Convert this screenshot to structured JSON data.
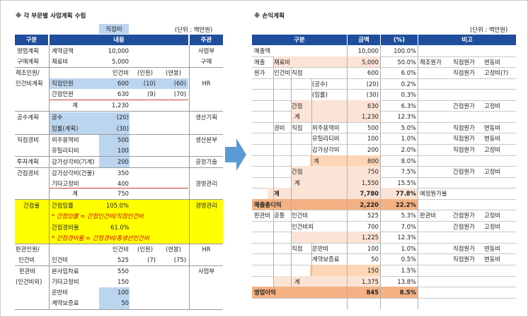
{
  "left": {
    "title": "※ 각 부문별 사업계획 수립",
    "unit": "(단위 : 백만원)",
    "top_label": "직접비",
    "headers": [
      "구분",
      "내용",
      "주관"
    ],
    "yeongeop": {
      "cat": "영업계획",
      "item": "계약금액",
      "val": "10,000",
      "owner": "사업부"
    },
    "gumae": {
      "cat": "구매계획",
      "item": "재료비",
      "val": "5,000",
      "owner": "구매"
    },
    "jejo": {
      "cat1": "제조인원/",
      "cat2": "인건비계획",
      "h_cost": "인건비",
      "h_ppl": "(인원)",
      "h_annual": "(연봉)",
      "r1": {
        "item": "직접인원",
        "cost": "600",
        "ppl": "(10)",
        "annual": "(60)"
      },
      "r2": {
        "item": "간접인원",
        "cost": "630",
        "ppl": "(9)",
        "annual": "(70)"
      },
      "total_label": "계",
      "total": "1,230",
      "owner": "HR"
    },
    "gongsu": {
      "cat": "공수계획",
      "r1": {
        "item": "공수",
        "val": "(20)"
      },
      "r2": {
        "item": "임률(계획)",
        "val": "(30)"
      },
      "owner": "생산기획"
    },
    "jikjeop": {
      "cat": "직접경비",
      "r1": {
        "item": "외주용역비",
        "val": "500"
      },
      "r2": {
        "item": "유틸리티비",
        "val": "100"
      },
      "owner": "생산본부"
    },
    "tuja": {
      "cat": "투자계획",
      "item": "감가상각비(기계)",
      "val": "200",
      "owner": "공정기술"
    },
    "ganjeop": {
      "cat": "간접경비",
      "r1": {
        "item": "감가상각비(건물)",
        "val": "350"
      },
      "r2": {
        "item": "기타고정비",
        "val": "400"
      },
      "total_label": "계",
      "total": "750",
      "owner": "경영관리"
    },
    "rate": {
      "cat": "간접율",
      "l1": "간접임률",
      "v1": "105.0%",
      "f1": "* 간접임률 = 간접인건비/직접인건비",
      "l2": "간접경비율",
      "v2": "61.0%",
      "f2": "* 간접경비율 = 간접경비/총생산인건비",
      "owner": "경영관리"
    },
    "pangwan_in": {
      "cat1": "판관인원/",
      "cat2": "인건비",
      "h_cost": "인건비",
      "h_ppl": "(인원)",
      "h_annual": "(연봉)",
      "item": "인건비",
      "cost": "525",
      "ppl": "(7)",
      "annual": "(75)",
      "owner": "HR"
    },
    "pangwan": {
      "cat1": "판관비",
      "cat2": "(인건비외)",
      "r1": {
        "item": "본사임차료",
        "val": "550"
      },
      "r2": {
        "item": "기타고정비",
        "val": "150"
      },
      "r3": {
        "item": "운반비",
        "val": "100"
      },
      "r4": {
        "item": "계약보증료",
        "val": "50"
      },
      "owner": "사업부"
    }
  },
  "right": {
    "title": "※ 손익계획",
    "unit": "(단위 : 백만원)",
    "headers": [
      "구분",
      "금액",
      "(%)",
      "비고"
    ],
    "rows": [
      {
        "labels": [
          "매출액"
        ],
        "amt": "10,000",
        "pct": "100.0%",
        "notes": [
          "",
          "",
          ""
        ]
      },
      {
        "labels": [
          "매출",
          "재료비"
        ],
        "amt": "5,000",
        "pct": "50.0%",
        "notes": [
          "제조원가",
          "직접원가",
          "변동비"
        ]
      },
      {
        "labels": [
          "원가",
          "인건비",
          "직접"
        ],
        "amt": "600",
        "pct": "6.0%",
        "notes": [
          "",
          "직접원가",
          "고정비(?)"
        ]
      },
      {
        "labels": [
          "(공수)"
        ],
        "amt": "(20)",
        "pct": "0.2%",
        "notes": [
          "",
          "",
          ""
        ]
      },
      {
        "labels": [
          "(임률)"
        ],
        "amt": "(30)",
        "pct": "0.3%",
        "notes": [
          "",
          "",
          ""
        ]
      },
      {
        "labels": [
          "간접"
        ],
        "amt": "630",
        "pct": "6.3%",
        "notes": [
          "",
          "간접원가",
          "고정비"
        ]
      },
      {
        "labels": [
          "계"
        ],
        "amt": "1,230",
        "pct": "12.3%",
        "notes": [
          "",
          "",
          ""
        ]
      },
      {
        "labels": [
          "경비",
          "직접",
          "외주용역비"
        ],
        "amt": "500",
        "pct": "5.0%",
        "notes": [
          "",
          "직접원가",
          "변동비"
        ]
      },
      {
        "labels": [
          "유틸리티비"
        ],
        "amt": "100",
        "pct": "1.0%",
        "notes": [
          "",
          "직접원가",
          "변동비"
        ]
      },
      {
        "labels": [
          "감가상각비"
        ],
        "amt": "200",
        "pct": "2.0%",
        "notes": [
          "",
          "직접원가",
          "고정비"
        ]
      },
      {
        "labels": [
          "계"
        ],
        "amt": "800",
        "pct": "8.0%",
        "notes": [
          "",
          "",
          ""
        ]
      },
      {
        "labels": [
          "간접"
        ],
        "amt": "750",
        "pct": "7.5%",
        "notes": [
          "",
          "간접원가",
          "고정비"
        ]
      },
      {
        "labels": [
          "계"
        ],
        "amt": "1,550",
        "pct": "15.5%",
        "notes": [
          "",
          "",
          ""
        ]
      },
      {
        "labels": [
          "계"
        ],
        "amt": "7,780",
        "pct": "77.8%",
        "notes": [
          "예정원가율",
          "",
          ""
        ]
      },
      {
        "labels": [
          "매출총이익"
        ],
        "amt": "2,220",
        "pct": "22.2%",
        "notes": [
          "",
          "",
          ""
        ]
      },
      {
        "labels": [
          "판관비",
          "공통",
          "인건비"
        ],
        "amt": "525",
        "pct": "5.3%",
        "notes": [
          "판관비",
          "간접원가",
          "고정비"
        ]
      },
      {
        "labels": [
          "인건비외"
        ],
        "amt": "700",
        "pct": "7.0%",
        "notes": [
          "",
          "간접원가",
          "고정비"
        ]
      },
      {
        "labels": [
          ""
        ],
        "amt": "1,225",
        "pct": "12.3%",
        "notes": [
          "",
          "",
          ""
        ]
      },
      {
        "labels": [
          "직접",
          "운반비"
        ],
        "amt": "100",
        "pct": "1.0%",
        "notes": [
          "",
          "직접원가",
          "변동비"
        ]
      },
      {
        "labels": [
          "계약보증료"
        ],
        "amt": "50",
        "pct": "0.5%",
        "notes": [
          "",
          "직접원가",
          "변동비"
        ]
      },
      {
        "labels": [
          ""
        ],
        "amt": "150",
        "pct": "1.5%",
        "notes": [
          "",
          "",
          ""
        ]
      },
      {
        "labels": [
          "계"
        ],
        "amt": "1,375",
        "pct": "13.8%",
        "notes": [
          "",
          "",
          ""
        ]
      },
      {
        "labels": [
          "영업이익"
        ],
        "amt": "845",
        "pct": "8.5%",
        "notes": [
          "",
          "",
          ""
        ]
      }
    ]
  },
  "colors": {
    "header": "#1f4e9c",
    "blue": "#bcd5ee",
    "pink": "#fbe3d6",
    "orange": "#f4b183",
    "yellow": "#ffff00",
    "arrow": "#5b9bd5"
  }
}
